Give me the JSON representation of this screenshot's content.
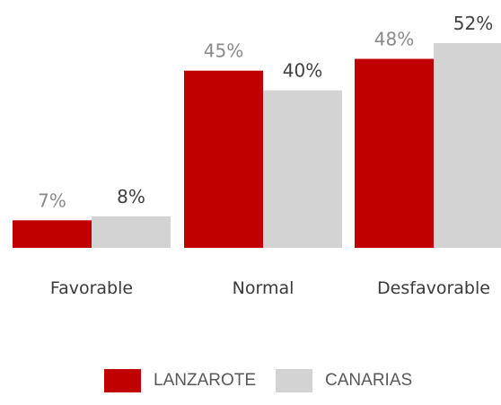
{
  "chart_data": {
    "type": "bar",
    "categories": [
      "Favorable",
      "Normal",
      "Desfavorable"
    ],
    "series": [
      {
        "name": "LANZAROTE",
        "values": [
          7,
          45,
          48
        ],
        "labels": [
          "7%",
          "45%",
          "48%"
        ],
        "color": "#c00000"
      },
      {
        "name": "CANARIAS",
        "values": [
          8,
          40,
          52
        ],
        "labels": [
          "8%",
          "40%",
          "52%"
        ],
        "color": "#d3d3d3"
      }
    ],
    "ylim": [
      0,
      52
    ],
    "grid": false,
    "legend": "bottom",
    "title": "",
    "xlabel": "",
    "ylabel": ""
  },
  "legend": {
    "items": [
      {
        "label": "LANZAROTE",
        "color": "#c00000"
      },
      {
        "label": "CANARIAS",
        "color": "#d3d3d3"
      }
    ]
  }
}
